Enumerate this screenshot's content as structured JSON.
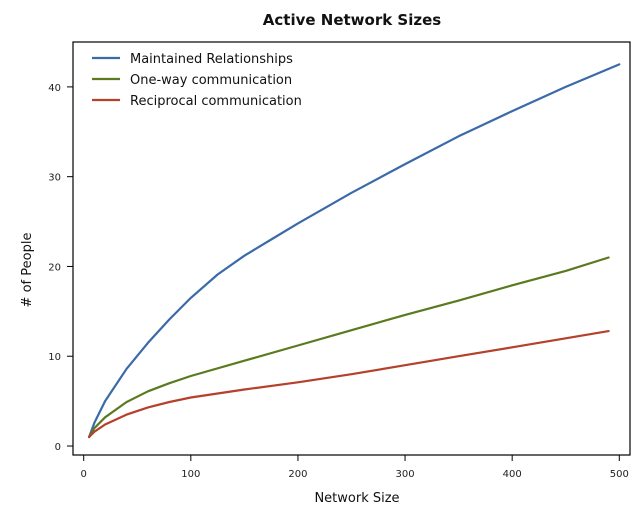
{
  "chart_data": {
    "type": "line",
    "title": "Active Network Sizes",
    "xlabel": "Network Size",
    "ylabel": "# of People",
    "xlim": [
      -10,
      510
    ],
    "ylim": [
      -1,
      45
    ],
    "xticks": [
      0,
      100,
      200,
      300,
      400,
      500
    ],
    "yticks": [
      0,
      10,
      20,
      30,
      40
    ],
    "grid": false,
    "legend_position": "top-left",
    "series": [
      {
        "name": "Maintained Relationships",
        "color": "#3a6aa8",
        "x": [
          5,
          10,
          20,
          40,
          60,
          80,
          100,
          125,
          150,
          175,
          200,
          250,
          300,
          350,
          400,
          450,
          500
        ],
        "y": [
          1,
          2.6,
          5,
          8.6,
          11.5,
          14.1,
          16.5,
          19.1,
          21.2,
          23.0,
          24.8,
          28.2,
          31.4,
          34.5,
          37.3,
          40.0,
          42.5
        ]
      },
      {
        "name": "One-way communication",
        "color": "#5b7a1f",
        "x": [
          5,
          10,
          20,
          40,
          60,
          80,
          100,
          150,
          200,
          250,
          300,
          350,
          400,
          450,
          490
        ],
        "y": [
          1,
          2.0,
          3.2,
          4.9,
          6.1,
          7.0,
          7.8,
          9.5,
          11.2,
          12.9,
          14.6,
          16.2,
          17.9,
          19.5,
          21.0
        ]
      },
      {
        "name": "Reciprocal communication",
        "color": "#b5402b",
        "x": [
          5,
          10,
          20,
          40,
          60,
          80,
          100,
          150,
          200,
          250,
          300,
          350,
          400,
          450,
          490
        ],
        "y": [
          1,
          1.6,
          2.4,
          3.5,
          4.3,
          4.9,
          5.4,
          6.3,
          7.1,
          8.0,
          9.0,
          10.0,
          11.0,
          12.0,
          12.8
        ]
      }
    ]
  }
}
